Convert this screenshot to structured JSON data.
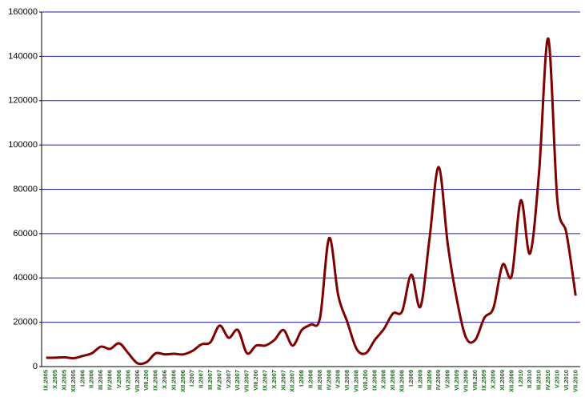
{
  "chart_data": {
    "type": "line",
    "categories": [
      "IX.2005",
      "X.2005",
      "XI.2005",
      "XII.2005",
      "I.2006",
      "II.2006",
      "III.2006",
      "IV.2006",
      "V.2006",
      "VI.2006",
      "VII.2006",
      "VIII.200",
      "IX.2006",
      "X.2006",
      "XI.2006",
      "XII.2006",
      "I.2007",
      "II.2007",
      "III.2007",
      "IV.2007",
      "V.2007",
      "VI.2007",
      "VII.2007",
      "VIII.200",
      "IX.2007",
      "X.2007",
      "XI.2007",
      "XII.2007",
      "I.2008",
      "II.2008",
      "III.2008",
      "IV.2008",
      "V.2008",
      "VI.2008",
      "VII.2008",
      "VIII.200",
      "IX.2008",
      "X.2008",
      "XI.2008",
      "XII.2008",
      "I.2009",
      "II.2009",
      "III.2009",
      "IV.2009",
      "V.2009",
      "VI.2009",
      "VII.2009",
      "VIII.200",
      "IX.2009",
      "X.2009",
      "XI.2009",
      "XII.2009",
      "I.2010",
      "II.2010",
      "III.2010",
      "IV.2010",
      "V.2010",
      "VI.2010",
      "VII.2010"
    ],
    "series": [
      {
        "name": "",
        "color": "#800000",
        "values": [
          4000,
          4000,
          4200,
          3800,
          4800,
          6000,
          9000,
          8000,
          10500,
          6000,
          1500,
          2000,
          6000,
          5500,
          5800,
          5500,
          7000,
          10000,
          11000,
          18500,
          13000,
          16500,
          6000,
          9500,
          9500,
          12000,
          16500,
          9500,
          16500,
          19000,
          22000,
          58000,
          32000,
          20000,
          8000,
          6000,
          12000,
          17000,
          24000,
          25000,
          41500,
          27000,
          58000,
          90000,
          55000,
          30000,
          13000,
          12000,
          22000,
          26500,
          46000,
          41000,
          75000,
          51000,
          88000,
          148000,
          75000,
          60000,
          32000
        ]
      }
    ],
    "ylim": [
      0,
      160000
    ],
    "yticks": [
      0,
      20000,
      40000,
      60000,
      80000,
      100000,
      120000,
      140000,
      160000
    ],
    "grid": true
  }
}
